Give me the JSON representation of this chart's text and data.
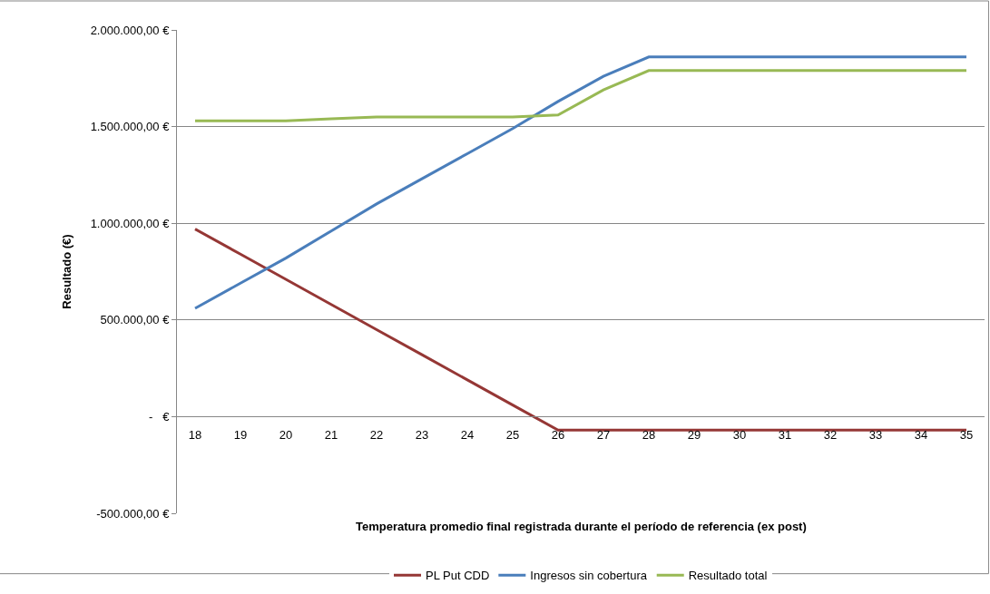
{
  "chart_data": {
    "type": "line",
    "xlabel": "Temperatura promedio final registrada durante el período de referencia (ex post)",
    "ylabel": "Resultado (€)",
    "categories": [
      "18",
      "19",
      "20",
      "21",
      "22",
      "23",
      "24",
      "25",
      "26",
      "27",
      "28",
      "29",
      "30",
      "31",
      "32",
      "33",
      "34",
      "35"
    ],
    "series": [
      {
        "name": "PL Put CDD",
        "color": "#953735",
        "values": [
          970000,
          840000,
          710000,
          580000,
          450000,
          320000,
          190000,
          60000,
          -70000,
          -70000,
          -70000,
          -70000,
          -70000,
          -70000,
          -70000,
          -70000,
          -70000,
          -70000
        ]
      },
      {
        "name": "Ingresos sin cobertura",
        "color": "#4a7ebb",
        "values": [
          560000,
          690000,
          820000,
          960000,
          1100000,
          1230000,
          1360000,
          1490000,
          1630000,
          1760000,
          1860000,
          1860000,
          1860000,
          1860000,
          1860000,
          1860000,
          1860000,
          1860000
        ]
      },
      {
        "name": "Resultado total",
        "color": "#98b954",
        "values": [
          1530000,
          1530000,
          1530000,
          1540000,
          1550000,
          1550000,
          1550000,
          1550000,
          1560000,
          1690000,
          1790000,
          1790000,
          1790000,
          1790000,
          1790000,
          1790000,
          1790000,
          1790000
        ]
      }
    ],
    "ylim": [
      -500000,
      2000000
    ],
    "yticks": [
      {
        "value": -500000,
        "label": "-500.000,00 €"
      },
      {
        "value": 0,
        "label": "-   €"
      },
      {
        "value": 500000,
        "label": "500.000,00 €"
      },
      {
        "value": 1000000,
        "label": "1.000.000,00 €"
      },
      {
        "value": 1500000,
        "label": "1.500.000,00 €"
      },
      {
        "value": 2000000,
        "label": "2.000.000,00 €"
      }
    ],
    "grid": "y",
    "legend": "bottom",
    "marker": "none",
    "line_style": "solid"
  }
}
